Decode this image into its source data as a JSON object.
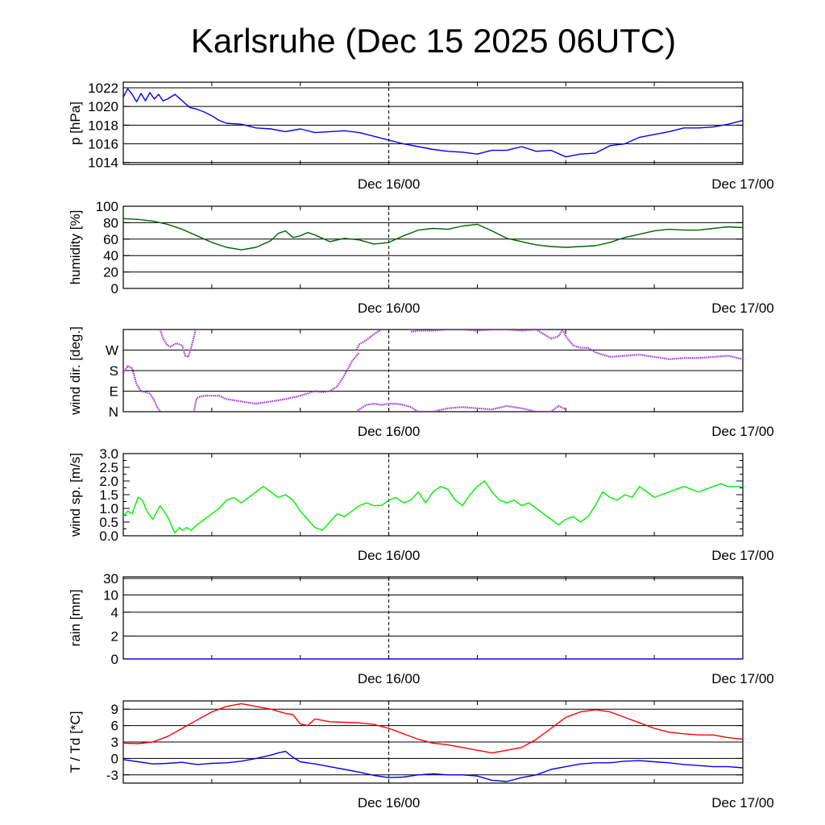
{
  "title": "Karlsruhe (Dec 15 2025 06UTC)",
  "chart_data": [
    {
      "type": "line",
      "id": "pressure",
      "ylabel": "p [hPa]",
      "ylim": [
        1013.8,
        1022.6
      ],
      "yticks": [
        "1014",
        "1016",
        "1018",
        "1020",
        "1022"
      ],
      "ytick_values": [
        1014,
        1016,
        1018,
        1020,
        1022
      ],
      "grid_values": [
        1014,
        1016,
        1018,
        1020,
        1022
      ],
      "xlim": [
        0,
        42
      ],
      "xticks": [
        "Dec 16/00",
        "Dec 17/00"
      ],
      "xtick_hours": [
        18,
        42
      ],
      "series": [
        {
          "name": "pressure",
          "color": "#0000ff",
          "x": [
            0,
            0.3,
            0.6,
            0.9,
            1.2,
            1.5,
            1.8,
            2.1,
            2.4,
            2.7,
            3,
            3.5,
            4,
            4.5,
            5,
            5.5,
            6,
            6.5,
            7,
            8,
            9,
            10,
            11,
            12,
            13,
            14,
            15,
            16,
            17,
            18,
            19,
            20,
            21,
            22,
            23,
            24,
            25,
            26,
            27,
            28,
            29,
            30,
            31,
            32,
            33,
            34,
            35,
            36,
            37,
            38,
            39,
            40,
            41,
            42
          ],
          "values": [
            1021.0,
            1021.9,
            1021.3,
            1020.5,
            1021.4,
            1020.6,
            1021.5,
            1020.8,
            1021.3,
            1020.6,
            1020.8,
            1021.3,
            1020.6,
            1019.9,
            1019.7,
            1019.4,
            1019.0,
            1018.5,
            1018.2,
            1018.1,
            1017.7,
            1017.6,
            1017.3,
            1017.6,
            1017.2,
            1017.3,
            1017.4,
            1017.2,
            1016.8,
            1016.4,
            1016.0,
            1015.7,
            1015.4,
            1015.2,
            1015.1,
            1014.9,
            1015.3,
            1015.3,
            1015.7,
            1015.2,
            1015.3,
            1014.6,
            1014.9,
            1015.0,
            1015.8,
            1016.0,
            1016.7,
            1017.0,
            1017.3,
            1017.7,
            1017.7,
            1017.8,
            1018.1,
            1018.5
          ]
        }
      ]
    },
    {
      "type": "line",
      "id": "humidity",
      "ylabel": "humidity [%]",
      "ylim": [
        0,
        100
      ],
      "yticks": [
        "0",
        "20",
        "40",
        "60",
        "80",
        "100"
      ],
      "ytick_values": [
        0,
        20,
        40,
        60,
        80,
        100
      ],
      "grid_values": [
        0,
        20,
        40,
        60,
        80,
        100
      ],
      "xlim": [
        0,
        42
      ],
      "xticks": [
        "Dec 16/00",
        "Dec 17/00"
      ],
      "xtick_hours": [
        18,
        42
      ],
      "series": [
        {
          "name": "humidity",
          "color": "#006400",
          "x": [
            0,
            1,
            2,
            3,
            4,
            5,
            6,
            7,
            8,
            9,
            10,
            10.5,
            11,
            11.5,
            12,
            12.5,
            13,
            14,
            15,
            16,
            17,
            18,
            19,
            20,
            21,
            22,
            23,
            24,
            25,
            26,
            27,
            28,
            29,
            30,
            31,
            32,
            33,
            34,
            35,
            36,
            37,
            38,
            39,
            40,
            41,
            42
          ],
          "values": [
            85,
            84,
            82,
            78,
            72,
            64,
            56,
            50,
            47,
            50,
            58,
            67,
            70,
            62,
            64,
            68,
            65,
            57,
            61,
            59,
            54,
            56,
            64,
            71,
            73,
            72,
            76,
            78,
            70,
            61,
            57,
            53,
            51,
            50,
            51,
            52,
            56,
            62,
            66,
            70,
            72,
            71,
            71,
            73,
            75,
            74
          ]
        }
      ]
    },
    {
      "type": "scatter",
      "id": "wind-direction",
      "ylabel": "wind dir. [deg.]",
      "ylim": [
        0,
        360
      ],
      "yticks": [
        "N",
        "E",
        "S",
        "W"
      ],
      "ytick_values": [
        0,
        90,
        180,
        270
      ],
      "grid_values": [
        0,
        90,
        180,
        270
      ],
      "xlim": [
        0,
        42
      ],
      "xticks": [
        "Dec 16/00",
        "Dec 17/00"
      ],
      "xtick_hours": [
        18,
        42
      ],
      "series": [
        {
          "name": "wind-direction",
          "color": "#9a32cd",
          "segments": [
            {
              "x": [
                0,
                0.3,
                0.6,
                0.9,
                1.2,
                1.5,
                1.8,
                2.1,
                2.3,
                2.5
              ],
              "values": [
                170,
                200,
                190,
                120,
                90,
                85,
                80,
                50,
                20,
                0
              ]
            },
            {
              "x": [
                2.5,
                2.7,
                3,
                3.2,
                3.6,
                4,
                4.2,
                4.4,
                4.6,
                4.9
              ],
              "values": [
                360,
                320,
                290,
                285,
                300,
                290,
                245,
                240,
                280,
                355
              ]
            },
            {
              "x": [
                4.8,
                4.9,
                5,
                5.2,
                5.5,
                6,
                6.5,
                7,
                7.5,
                8,
                9,
                10,
                11,
                12,
                12.5,
                13,
                13.5,
                14,
                14.5,
                15,
                15.5,
                16
              ],
              "values": [
                0,
                40,
                60,
                65,
                70,
                70,
                70,
                55,
                50,
                45,
                35,
                45,
                55,
                70,
                80,
                90,
                85,
                90,
                110,
                160,
                220,
                260
              ]
            },
            {
              "x": [
                15.8,
                16,
                16.5,
                17,
                17.5,
                18
              ],
              "values": [
                270,
                295,
                315,
                340,
                360,
                360
              ]
            },
            {
              "x": [
                19.5,
                20,
                21,
                22,
                23,
                24,
                25,
                26,
                27,
                28,
                28.5,
                29,
                29.5,
                29.8
              ],
              "values": [
                350,
                355,
                355,
                360,
                360,
                355,
                360,
                360,
                355,
                360,
                340,
                320,
                330,
                360
              ]
            },
            {
              "x": [
                29.8,
                30,
                30.5,
                31,
                31.5,
                32,
                32.5,
                33,
                34,
                35,
                36,
                37,
                38,
                39,
                40,
                41,
                42
              ],
              "values": [
                360,
                330,
                290,
                280,
                280,
                260,
                250,
                240,
                245,
                250,
                240,
                230,
                235,
                235,
                240,
                245,
                230
              ]
            },
            {
              "x": [
                15.8,
                16,
                16.5,
                17,
                17.5,
                18,
                18.5,
                19,
                19.5,
                20,
                21,
                22,
                23,
                24,
                25,
                26,
                27,
                28,
                29,
                29.5,
                30
              ],
              "values": [
                0,
                10,
                30,
                35,
                30,
                35,
                35,
                30,
                20,
                0,
                0,
                15,
                20,
                15,
                10,
                25,
                15,
                0,
                0,
                25,
                10
              ]
            }
          ]
        }
      ]
    },
    {
      "type": "line",
      "id": "wind-speed",
      "ylabel": "wind sp. [m/s]",
      "ylim": [
        0,
        3.0
      ],
      "yticks": [
        "0.0",
        "0.5",
        "1.0",
        "1.5",
        "2.0",
        "2.5",
        "3.0"
      ],
      "ytick_values": [
        0,
        0.5,
        1.0,
        1.5,
        2.0,
        2.5,
        3.0
      ],
      "grid_values": [],
      "xlim": [
        0,
        42
      ],
      "xticks": [
        "Dec 16/00",
        "Dec 17/00"
      ],
      "xtick_hours": [
        18,
        42
      ],
      "series": [
        {
          "name": "wind-speed",
          "color": "#00ee00",
          "x": [
            0,
            0.3,
            0.6,
            1,
            1.3,
            1.6,
            2,
            2.5,
            3,
            3.5,
            3.8,
            4,
            4.3,
            4.6,
            5,
            5.5,
            6,
            6.5,
            7,
            7.5,
            8,
            8.5,
            9,
            9.5,
            10,
            10.5,
            11,
            11.5,
            12,
            12.5,
            13,
            13.5,
            14,
            14.5,
            15,
            15.5,
            16,
            16.5,
            17,
            17.5,
            18,
            18.5,
            19,
            19.5,
            20,
            20.5,
            21,
            21.5,
            22,
            22.5,
            23,
            23.5,
            24,
            24.5,
            25,
            25.5,
            26,
            26.5,
            27,
            27.5,
            28,
            28.5,
            29,
            29.5,
            30,
            30.5,
            31,
            31.5,
            32,
            32.5,
            33,
            33.5,
            34,
            34.5,
            35,
            35.5,
            36,
            36.5,
            37,
            37.5,
            38,
            38.5,
            39,
            39.5,
            40,
            40.5,
            41,
            41.5,
            42
          ],
          "values": [
            0.7,
            0.9,
            0.8,
            1.4,
            1.3,
            0.9,
            0.6,
            1.1,
            0.7,
            0.1,
            0.3,
            0.2,
            0.3,
            0.2,
            0.4,
            0.6,
            0.8,
            1.0,
            1.3,
            1.4,
            1.2,
            1.4,
            1.6,
            1.8,
            1.6,
            1.4,
            1.5,
            1.3,
            0.9,
            0.6,
            0.3,
            0.2,
            0.5,
            0.8,
            0.7,
            0.9,
            1.1,
            1.2,
            1.1,
            1.1,
            1.3,
            1.4,
            1.2,
            1.3,
            1.6,
            1.2,
            1.6,
            1.8,
            1.7,
            1.3,
            1.1,
            1.5,
            1.8,
            2.0,
            1.6,
            1.3,
            1.2,
            1.3,
            1.1,
            1.2,
            1.0,
            0.8,
            0.6,
            0.4,
            0.6,
            0.7,
            0.5,
            0.7,
            1.1,
            1.6,
            1.4,
            1.3,
            1.5,
            1.4,
            1.8,
            1.6,
            1.4,
            1.5,
            1.6,
            1.7,
            1.8,
            1.7,
            1.6,
            1.7,
            1.8,
            1.9,
            1.8,
            1.8,
            1.8
          ]
        }
      ]
    },
    {
      "type": "line",
      "id": "rain",
      "ylabel": "rain [mm]",
      "ylim": [
        0,
        30
      ],
      "yticks": [
        "0",
        "2",
        "4",
        "10",
        "30"
      ],
      "ytick_values": [
        0,
        2,
        4,
        10,
        30
      ],
      "grid_values": [
        2,
        4,
        10,
        30
      ],
      "xlim": [
        0,
        42
      ],
      "xticks": [
        "Dec 16/00",
        "Dec 17/00"
      ],
      "xtick_hours": [
        18,
        42
      ],
      "series": [
        {
          "name": "rain",
          "color": "#0000ff",
          "x": [
            0,
            42
          ],
          "values": [
            0,
            0
          ]
        }
      ]
    },
    {
      "type": "line",
      "id": "temperature",
      "ylabel": "T / Td [*C]",
      "ylim": [
        -4.5,
        10.5
      ],
      "yticks": [
        "-3",
        "0",
        "3",
        "6",
        "9"
      ],
      "ytick_values": [
        -3,
        0,
        3,
        6,
        9
      ],
      "grid_values": [
        -3,
        0,
        3,
        6,
        9
      ],
      "xlim": [
        0,
        42
      ],
      "xticks": [
        "Dec 16/00",
        "Dec 17/00"
      ],
      "xtick_hours": [
        18,
        42
      ],
      "series": [
        {
          "name": "T",
          "color": "#ff0000",
          "x": [
            0,
            1,
            2,
            3,
            4,
            5,
            6,
            7,
            8,
            9,
            10,
            11,
            11.5,
            12,
            12.5,
            13,
            14,
            15,
            16,
            17,
            18,
            19,
            20,
            21,
            22,
            23,
            24,
            25,
            26,
            27,
            28,
            29,
            30,
            31,
            32,
            33,
            34,
            35,
            36,
            37,
            38,
            39,
            40,
            41,
            42
          ],
          "values": [
            2.8,
            2.7,
            3.0,
            4.0,
            5.5,
            7.0,
            8.5,
            9.5,
            10.0,
            9.5,
            9.0,
            8.2,
            8.0,
            6.3,
            6.0,
            7.2,
            6.7,
            6.6,
            6.5,
            6.2,
            5.5,
            4.5,
            3.5,
            2.8,
            2.5,
            2.0,
            1.5,
            1.0,
            1.5,
            2.0,
            3.5,
            5.5,
            7.5,
            8.5,
            8.9,
            8.5,
            7.5,
            6.5,
            5.5,
            4.8,
            4.5,
            4.3,
            4.3,
            3.8,
            3.5
          ]
        },
        {
          "name": "Td",
          "color": "#0000ff",
          "x": [
            0,
            1,
            2,
            3,
            4,
            5,
            6,
            7,
            8,
            9,
            10,
            10.5,
            11,
            11.5,
            12,
            13,
            14,
            15,
            16,
            17,
            18,
            19,
            20,
            21,
            22,
            23,
            24,
            25,
            26,
            27,
            28,
            29,
            30,
            31,
            32,
            33,
            34,
            35,
            36,
            37,
            38,
            39,
            40,
            41,
            42
          ],
          "values": [
            -0.2,
            -0.6,
            -1.0,
            -0.9,
            -0.7,
            -1.1,
            -0.9,
            -0.8,
            -0.5,
            0.0,
            0.6,
            1.0,
            1.3,
            0.2,
            -0.6,
            -1.0,
            -1.5,
            -2.0,
            -2.5,
            -3.1,
            -3.5,
            -3.4,
            -3.0,
            -2.8,
            -3.0,
            -3.0,
            -3.2,
            -4.0,
            -4.2,
            -3.5,
            -3.0,
            -2.0,
            -1.5,
            -1.0,
            -0.8,
            -0.8,
            -0.5,
            -0.4,
            -0.6,
            -0.8,
            -1.1,
            -1.3,
            -1.5,
            -1.5,
            -1.7
          ]
        }
      ]
    }
  ]
}
